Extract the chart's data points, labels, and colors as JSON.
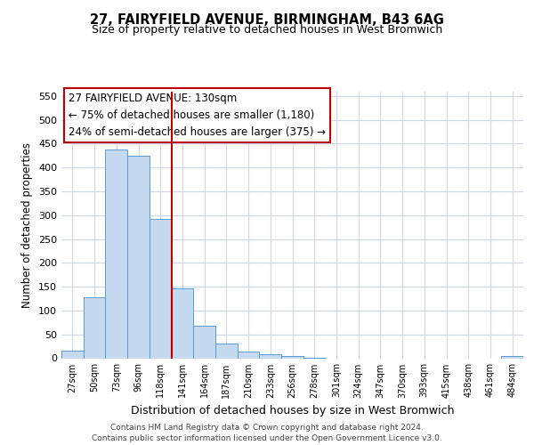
{
  "title1": "27, FAIRYFIELD AVENUE, BIRMINGHAM, B43 6AG",
  "title2": "Size of property relative to detached houses in West Bromwich",
  "xlabel": "Distribution of detached houses by size in West Bromwich",
  "ylabel": "Number of detached properties",
  "bar_labels": [
    "27sqm",
    "50sqm",
    "73sqm",
    "96sqm",
    "118sqm",
    "141sqm",
    "164sqm",
    "187sqm",
    "210sqm",
    "233sqm",
    "256sqm",
    "278sqm",
    "301sqm",
    "324sqm",
    "347sqm",
    "370sqm",
    "393sqm",
    "415sqm",
    "438sqm",
    "461sqm",
    "484sqm"
  ],
  "bar_values": [
    15,
    128,
    438,
    425,
    293,
    147,
    68,
    30,
    14,
    8,
    5,
    1,
    0,
    0,
    0,
    0,
    0,
    0,
    0,
    0,
    4
  ],
  "bar_color": "#c5d9f1",
  "bar_edge_color": "#5b9bd5",
  "ylim": [
    0,
    560
  ],
  "yticks": [
    0,
    50,
    100,
    150,
    200,
    250,
    300,
    350,
    400,
    450,
    500,
    550
  ],
  "property_line_x": 4.5,
  "property_line_color": "#c00000",
  "annotation_title": "27 FAIRYFIELD AVENUE: 130sqm",
  "annotation_line1": "← 75% of detached houses are smaller (1,180)",
  "annotation_line2": "24% of semi-detached houses are larger (375) →",
  "annotation_box_color": "#ffffff",
  "annotation_box_edge_color": "#c00000",
  "footer1": "Contains HM Land Registry data © Crown copyright and database right 2024.",
  "footer2": "Contains public sector information licensed under the Open Government Licence v3.0.",
  "background_color": "#ffffff",
  "grid_color": "#d0d8e4"
}
